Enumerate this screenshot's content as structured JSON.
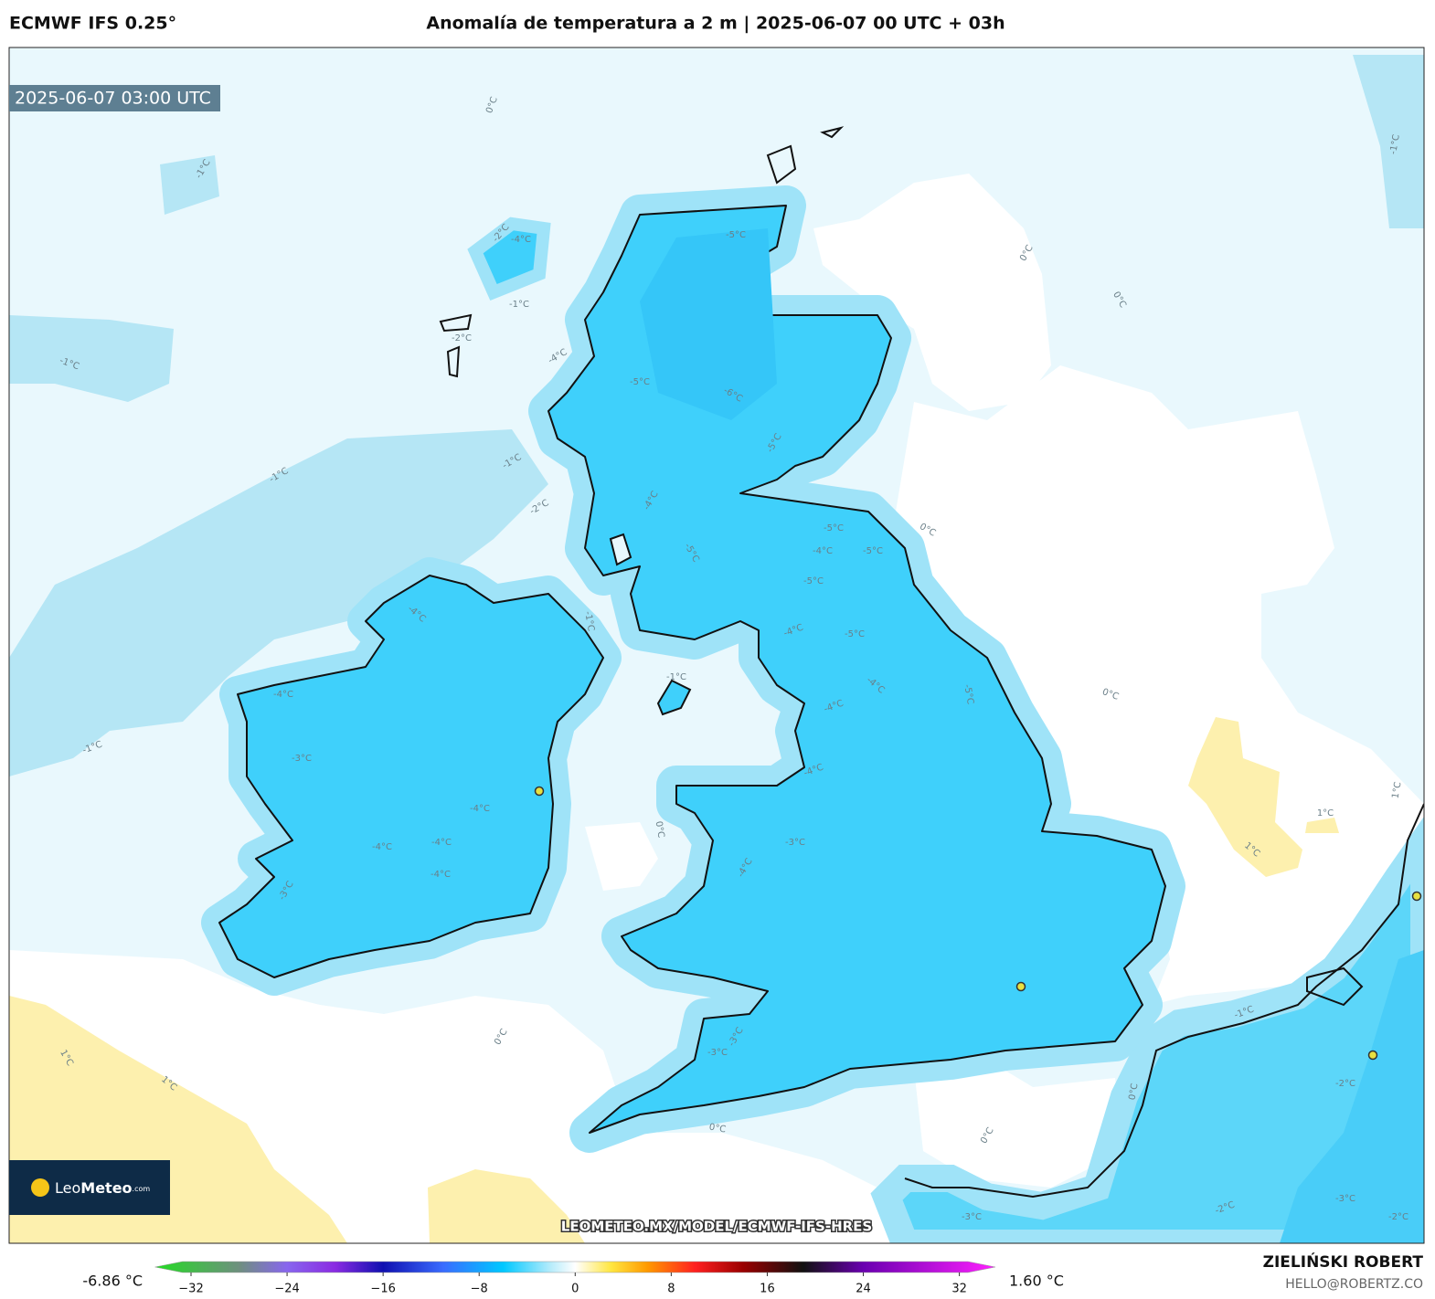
{
  "header": {
    "model": "ECMWF IFS 0.25°",
    "title": "Anomalía de temperatura a 2 m | 2025-06-07 00 UTC + 03h"
  },
  "map": {
    "valid_time": "2025-06-07 03:00 UTC",
    "watermark": "LEOMETEO.MX/MODEL/ECMWF-IFS-HRES",
    "logo": {
      "name_light": "Leo",
      "name_bold": "Meteo",
      "suffix": ".com"
    },
    "contour_labels": [
      "0°C",
      "-1°C",
      "-1°C",
      "-1°C",
      "-1°C",
      "0°C",
      "1°C",
      "1°C",
      "-5°C",
      "-6°C",
      "-5°C",
      "-5°C",
      "-4°C",
      "-5°C",
      "-5°C",
      "-4°C",
      "-5°C",
      "-4°C",
      "-4°C",
      "-5°C",
      "-4°C",
      "-3°C",
      "-4°C",
      "-3°C",
      "-4°C",
      "-4°C",
      "-4°C",
      "-4°C",
      "-3°C",
      "-4°C",
      "-4°C",
      "0°C",
      "0°C",
      "0°C",
      "1°C",
      "1°C",
      "1°C",
      "0°C",
      "0°C",
      "-1°C",
      "-1°C",
      "-2°C",
      "-3°C",
      "-2°C",
      "-3°C",
      "-2°C",
      "0°C",
      "0°C",
      "0°C",
      "-3°C",
      "-3°C",
      "-1°C",
      "-1°C",
      "-1°C",
      "-2°C",
      "-1°C",
      "-2°C",
      "-4°C",
      "-5°C",
      "-4°C",
      "-5°C",
      "-4°C",
      "-2°C"
    ]
  },
  "colorbar": {
    "min_label": "-6.86 °C",
    "max_label": "1.60 °C",
    "range": [
      -35,
      35
    ],
    "ticks": [
      {
        "value": -32,
        "label": "−32"
      },
      {
        "value": -24,
        "label": "−24"
      },
      {
        "value": -16,
        "label": "−16"
      },
      {
        "value": -8,
        "label": "−8"
      },
      0,
      8,
      16,
      24,
      32
    ],
    "stops": [
      {
        "value": -35,
        "color": "#22dd22"
      },
      {
        "value": -28,
        "color": "#6f8f7f"
      },
      {
        "value": -24,
        "color": "#8866ee"
      },
      {
        "value": -20,
        "color": "#8a2be2"
      },
      {
        "value": -16,
        "color": "#1010b0"
      },
      {
        "value": -11,
        "color": "#3a6cff"
      },
      {
        "value": -6,
        "color": "#00c8ff"
      },
      {
        "value": -2,
        "color": "#b8ecfb"
      },
      {
        "value": 0,
        "color": "#ffffff"
      },
      {
        "value": 3,
        "color": "#ffe640"
      },
      {
        "value": 6,
        "color": "#ff9a00"
      },
      {
        "value": 10,
        "color": "#ff2020"
      },
      {
        "value": 14,
        "color": "#9a0000"
      },
      {
        "value": 19,
        "color": "#111111"
      },
      {
        "value": 24,
        "color": "#6a00b0"
      },
      {
        "value": 35,
        "color": "#ff20ff"
      }
    ]
  },
  "footer": {
    "author": "ZIELIŃSKI ROBERT",
    "email": "HELLO@ROBERTZ.CO"
  }
}
